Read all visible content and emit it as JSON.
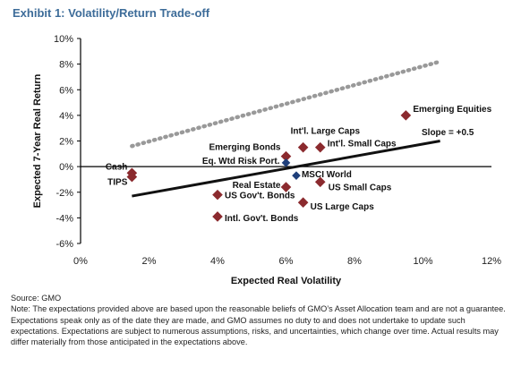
{
  "exhibit_title": "Exhibit 1: Volatility/Return Trade-off",
  "source": "Source: GMO",
  "note": "Note: The expectations provided above are based upon the reasonable beliefs of GMO’s Asset Allocation team and are not a guarantee. Expectations speak only as of the date they are made, and GMO assumes no duty to and does not undertake to update such expectations. Expectations are subject to numerous assumptions, risks, and uncertainties, which change over time. Actual results may differ materially from those anticipated in the expectations above.",
  "chart_data": {
    "type": "scatter",
    "title": "Exhibit 1: Volatility/Return Trade-off",
    "xlabel": "Expected Real Volatility",
    "ylabel": "Expected 7-Year Real Return",
    "xlim": [
      0,
      12
    ],
    "ylim": [
      -6,
      10
    ],
    "x_ticks": [
      "0%",
      "2%",
      "4%",
      "6%",
      "8%",
      "10%",
      "12%"
    ],
    "y_ticks": [
      "-6%",
      "-4%",
      "-2%",
      "0%",
      "2%",
      "4%",
      "6%",
      "8%",
      "10%"
    ],
    "grid": false,
    "colors": {
      "asset": "#8b2a2e",
      "portfolio": "#1f3f7a",
      "trend": "#111111",
      "dotted": "#999999",
      "title": "#3d6c99"
    },
    "points": [
      {
        "label": "Cash",
        "x": 1.5,
        "y": -0.5,
        "kind": "asset"
      },
      {
        "label": "TIPS",
        "x": 1.5,
        "y": -0.8,
        "kind": "asset"
      },
      {
        "label": "US Gov't. Bonds",
        "x": 4.0,
        "y": -2.2,
        "kind": "asset"
      },
      {
        "label": "Intl. Gov't. Bonds",
        "x": 4.0,
        "y": -3.9,
        "kind": "asset"
      },
      {
        "label": "Real Estate",
        "x": 6.0,
        "y": -1.6,
        "kind": "asset"
      },
      {
        "label": "Emerging Bonds",
        "x": 6.0,
        "y": 0.8,
        "kind": "asset"
      },
      {
        "label": "Int'l. Large Caps",
        "x": 6.5,
        "y": 1.5,
        "kind": "asset"
      },
      {
        "label": "Int'l. Small Caps",
        "x": 7.0,
        "y": 1.5,
        "kind": "asset"
      },
      {
        "label": "US Large Caps",
        "x": 6.5,
        "y": -2.8,
        "kind": "asset"
      },
      {
        "label": "US Small Caps",
        "x": 7.0,
        "y": -1.2,
        "kind": "asset"
      },
      {
        "label": "Emerging Equities",
        "x": 9.5,
        "y": 4.0,
        "kind": "asset"
      },
      {
        "label": "Eq. Wtd Risk Port.",
        "x": 6.0,
        "y": 0.3,
        "kind": "portfolio"
      },
      {
        "label": "MSCI World",
        "x": 6.3,
        "y": -0.7,
        "kind": "portfolio"
      }
    ],
    "trend_line": {
      "x": [
        1.5,
        10.5
      ],
      "y": [
        -2.3,
        2.0
      ]
    },
    "dotted_line": {
      "x": [
        1.5,
        10.5
      ],
      "y": [
        1.6,
        8.2
      ]
    },
    "annotation": "Slope = +0.5"
  }
}
